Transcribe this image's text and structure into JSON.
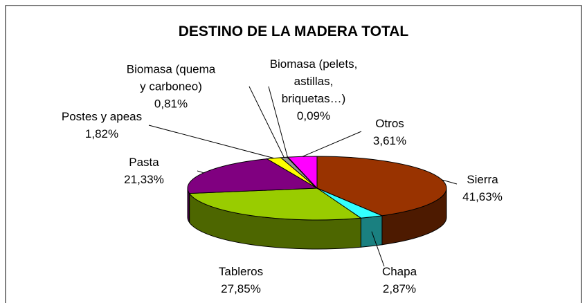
{
  "chart_data": {
    "type": "pie3d",
    "title": "DESTINO DE LA MADERA TOTAL",
    "categories": [
      "Sierra",
      "Chapa",
      "Tableros",
      "Pasta",
      "Postes y apeas",
      "Biomasa (quema\ny carboneo)",
      "Biomasa (pelets,\nastillas,\nbriquetas…)",
      "Otros"
    ],
    "values": [
      41.63,
      2.87,
      27.85,
      21.33,
      1.82,
      0.81,
      0.09,
      3.61
    ],
    "value_labels": [
      "41,63%",
      "2,87%",
      "27,85%",
      "21,33%",
      "1,82%",
      "0,81%",
      "0,09%",
      "3,61%"
    ],
    "colors": [
      "#993300",
      "#33ffff",
      "#99cc00",
      "#800080",
      "#ffff00",
      "#969696",
      "#c0c0c0",
      "#ff00ff"
    ]
  }
}
